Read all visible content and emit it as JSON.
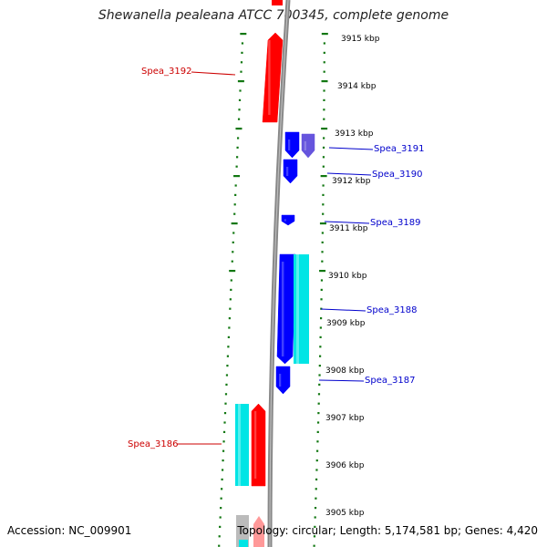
{
  "title": "Shewanella pealeana ATCC 700345, complete genome",
  "footer": {
    "accession": "Accession: NC_009901",
    "summary": "Topology: circular; Length: 5,174,581 bp; Genes: 4,420"
  },
  "colors": {
    "forward_gene": "#ff0000",
    "reverse_gene": "#0000ff",
    "forward_cds": "#00e5e5",
    "reverse_cds": "#6655dd",
    "backbone": "#888888",
    "tick": "#117711",
    "label_forward": "#cc0000",
    "label_reverse": "#0000cc"
  },
  "scale_labels": [
    "3915 kbp",
    "3914 kbp",
    "3913 kbp",
    "3912 kbp",
    "3911 kbp",
    "3910 kbp",
    "3909 kbp",
    "3908 kbp",
    "3907 kbp",
    "3906 kbp",
    "3905 kbp"
  ],
  "gene_labels": [
    {
      "text": "Spea_3192",
      "strand": "forward"
    },
    {
      "text": "Spea_3191",
      "strand": "reverse"
    },
    {
      "text": "Spea_3190",
      "strand": "reverse"
    },
    {
      "text": "Spea_3189",
      "strand": "reverse"
    },
    {
      "text": "Spea_3188",
      "strand": "reverse"
    },
    {
      "text": "Spea_3187",
      "strand": "reverse"
    },
    {
      "text": "Spea_3186",
      "strand": "forward"
    }
  ]
}
